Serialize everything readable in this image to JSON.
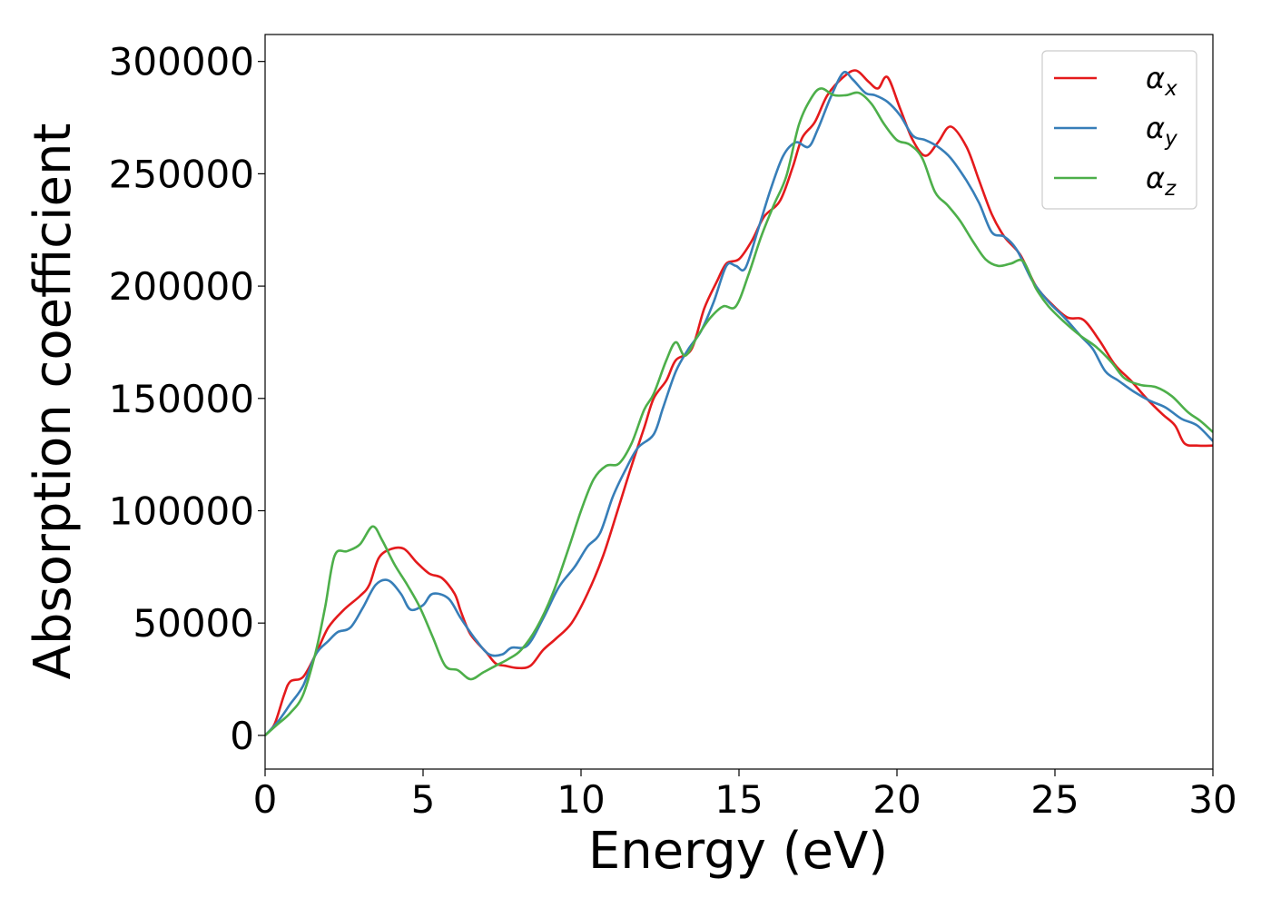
{
  "chart_data": {
    "type": "line",
    "title": "",
    "xlabel": "Energy (eV)",
    "ylabel": "Absorption coefficient",
    "xlim": [
      0,
      30
    ],
    "ylim": [
      -15000,
      312000
    ],
    "grid": false,
    "legend_position": "top-right",
    "x_ticks": [
      0,
      5,
      10,
      15,
      20,
      25,
      30
    ],
    "y_ticks": [
      0,
      50000,
      100000,
      150000,
      200000,
      250000,
      300000
    ],
    "series": [
      {
        "name": "αx",
        "symbol": "α",
        "subscript": "x",
        "color": "#e41a1c",
        "points": [
          [
            0,
            0
          ],
          [
            0.3,
            5000
          ],
          [
            0.6,
            18000
          ],
          [
            0.8,
            24000
          ],
          [
            1.2,
            26000
          ],
          [
            1.6,
            36000
          ],
          [
            2,
            48000
          ],
          [
            2.5,
            56000
          ],
          [
            3,
            62000
          ],
          [
            3.3,
            67000
          ],
          [
            3.6,
            79000
          ],
          [
            4,
            83000
          ],
          [
            4.4,
            83000
          ],
          [
            4.8,
            77000
          ],
          [
            5.2,
            72000
          ],
          [
            5.6,
            70000
          ],
          [
            6,
            63000
          ],
          [
            6.2,
            55000
          ],
          [
            6.5,
            45000
          ],
          [
            7,
            37000
          ],
          [
            7.3,
            32000
          ],
          [
            7.6,
            31000
          ],
          [
            8,
            30000
          ],
          [
            8.4,
            31000
          ],
          [
            8.8,
            38000
          ],
          [
            9.2,
            43000
          ],
          [
            9.7,
            50000
          ],
          [
            10.2,
            63000
          ],
          [
            10.7,
            80000
          ],
          [
            11.2,
            102000
          ],
          [
            11.6,
            120000
          ],
          [
            12,
            137000
          ],
          [
            12.3,
            150000
          ],
          [
            12.7,
            158000
          ],
          [
            13,
            167000
          ],
          [
            13.5,
            172000
          ],
          [
            13.9,
            190000
          ],
          [
            14.3,
            202000
          ],
          [
            14.6,
            210000
          ],
          [
            15,
            212000
          ],
          [
            15.4,
            220000
          ],
          [
            15.8,
            231000
          ],
          [
            16.3,
            238000
          ],
          [
            16.7,
            253000
          ],
          [
            17,
            266000
          ],
          [
            17.4,
            273000
          ],
          [
            17.8,
            285000
          ],
          [
            18.3,
            293000
          ],
          [
            18.7,
            296000
          ],
          [
            19.1,
            291000
          ],
          [
            19.4,
            288000
          ],
          [
            19.7,
            293000
          ],
          [
            20.1,
            279000
          ],
          [
            20.5,
            265000
          ],
          [
            20.9,
            258000
          ],
          [
            21.3,
            264000
          ],
          [
            21.7,
            271000
          ],
          [
            22.2,
            262000
          ],
          [
            22.6,
            247000
          ],
          [
            23,
            232000
          ],
          [
            23.4,
            222000
          ],
          [
            23.9,
            214000
          ],
          [
            24.4,
            200000
          ],
          [
            24.9,
            192000
          ],
          [
            25.4,
            186000
          ],
          [
            25.9,
            185000
          ],
          [
            26.4,
            176000
          ],
          [
            26.9,
            165000
          ],
          [
            27.4,
            158000
          ],
          [
            27.9,
            150000
          ],
          [
            28.4,
            143000
          ],
          [
            28.8,
            138000
          ],
          [
            29.1,
            130000
          ],
          [
            29.5,
            129000
          ],
          [
            30,
            129000
          ]
        ]
      },
      {
        "name": "αy",
        "symbol": "α",
        "subscript": "y",
        "color": "#377eb8",
        "points": [
          [
            0,
            0
          ],
          [
            0.4,
            6000
          ],
          [
            0.8,
            14000
          ],
          [
            1.2,
            22000
          ],
          [
            1.6,
            36000
          ],
          [
            2,
            42000
          ],
          [
            2.3,
            46000
          ],
          [
            2.7,
            48000
          ],
          [
            3.1,
            57000
          ],
          [
            3.5,
            67000
          ],
          [
            3.9,
            69000
          ],
          [
            4.3,
            63000
          ],
          [
            4.6,
            56000
          ],
          [
            5,
            58000
          ],
          [
            5.3,
            63000
          ],
          [
            5.8,
            61000
          ],
          [
            6.2,
            52000
          ],
          [
            6.7,
            42000
          ],
          [
            7.1,
            36000
          ],
          [
            7.5,
            36000
          ],
          [
            7.8,
            39000
          ],
          [
            8.3,
            40000
          ],
          [
            8.8,
            52000
          ],
          [
            9.3,
            66000
          ],
          [
            9.8,
            75000
          ],
          [
            10.2,
            84000
          ],
          [
            10.6,
            90000
          ],
          [
            11,
            106000
          ],
          [
            11.4,
            118000
          ],
          [
            11.8,
            128000
          ],
          [
            12.3,
            134000
          ],
          [
            12.6,
            146000
          ],
          [
            13,
            162000
          ],
          [
            13.4,
            172000
          ],
          [
            13.8,
            180000
          ],
          [
            14.2,
            193000
          ],
          [
            14.6,
            209000
          ],
          [
            14.9,
            209000
          ],
          [
            15.2,
            208000
          ],
          [
            15.6,
            225000
          ],
          [
            16,
            243000
          ],
          [
            16.4,
            258000
          ],
          [
            16.8,
            264000
          ],
          [
            17.2,
            262000
          ],
          [
            17.5,
            270000
          ],
          [
            17.9,
            284000
          ],
          [
            18.3,
            295000
          ],
          [
            18.6,
            292000
          ],
          [
            19,
            286000
          ],
          [
            19.3,
            285000
          ],
          [
            19.7,
            282000
          ],
          [
            20.1,
            276000
          ],
          [
            20.5,
            267000
          ],
          [
            20.9,
            265000
          ],
          [
            21.3,
            262000
          ],
          [
            21.7,
            257000
          ],
          [
            22.2,
            247000
          ],
          [
            22.6,
            237000
          ],
          [
            23,
            224000
          ],
          [
            23.4,
            222000
          ],
          [
            23.8,
            216000
          ],
          [
            24.3,
            202000
          ],
          [
            24.8,
            193000
          ],
          [
            25.3,
            186000
          ],
          [
            25.8,
            178000
          ],
          [
            26.2,
            172000
          ],
          [
            26.6,
            162000
          ],
          [
            27,
            158000
          ],
          [
            27.5,
            153000
          ],
          [
            28,
            149000
          ],
          [
            28.5,
            146000
          ],
          [
            29,
            141000
          ],
          [
            29.5,
            138000
          ],
          [
            30,
            131000
          ]
        ]
      },
      {
        "name": "αz",
        "symbol": "α",
        "subscript": "z",
        "color": "#4daf4a",
        "points": [
          [
            0,
            0
          ],
          [
            0.4,
            5000
          ],
          [
            0.8,
            10000
          ],
          [
            1.2,
            18000
          ],
          [
            1.6,
            37000
          ],
          [
            1.9,
            57000
          ],
          [
            2.2,
            80000
          ],
          [
            2.6,
            82000
          ],
          [
            3,
            85000
          ],
          [
            3.4,
            93000
          ],
          [
            3.7,
            87000
          ],
          [
            4.1,
            76000
          ],
          [
            4.5,
            67000
          ],
          [
            4.9,
            57000
          ],
          [
            5.3,
            44000
          ],
          [
            5.7,
            31000
          ],
          [
            6.1,
            29000
          ],
          [
            6.5,
            25000
          ],
          [
            6.9,
            28000
          ],
          [
            7.3,
            31000
          ],
          [
            7.7,
            34000
          ],
          [
            8.1,
            38000
          ],
          [
            8.6,
            48000
          ],
          [
            9.1,
            63000
          ],
          [
            9.6,
            83000
          ],
          [
            10,
            100000
          ],
          [
            10.4,
            114000
          ],
          [
            10.8,
            120000
          ],
          [
            11.2,
            121000
          ],
          [
            11.6,
            130000
          ],
          [
            12,
            145000
          ],
          [
            12.3,
            152000
          ],
          [
            12.7,
            167000
          ],
          [
            13,
            175000
          ],
          [
            13.3,
            169000
          ],
          [
            13.7,
            178000
          ],
          [
            14.1,
            186000
          ],
          [
            14.5,
            191000
          ],
          [
            14.9,
            191000
          ],
          [
            15.3,
            205000
          ],
          [
            15.7,
            222000
          ],
          [
            16.1,
            236000
          ],
          [
            16.5,
            249000
          ],
          [
            16.9,
            272000
          ],
          [
            17.3,
            284000
          ],
          [
            17.6,
            288000
          ],
          [
            18,
            285000
          ],
          [
            18.4,
            285000
          ],
          [
            18.8,
            286000
          ],
          [
            19.2,
            281000
          ],
          [
            19.6,
            272000
          ],
          [
            20,
            265000
          ],
          [
            20.4,
            263000
          ],
          [
            20.8,
            257000
          ],
          [
            21.2,
            242000
          ],
          [
            21.6,
            236000
          ],
          [
            22,
            229000
          ],
          [
            22.4,
            220000
          ],
          [
            22.8,
            212000
          ],
          [
            23.2,
            209000
          ],
          [
            23.6,
            210000
          ],
          [
            24,
            211000
          ],
          [
            24.4,
            199000
          ],
          [
            24.8,
            191000
          ],
          [
            25.3,
            184000
          ],
          [
            25.8,
            178000
          ],
          [
            26.3,
            173000
          ],
          [
            26.8,
            166000
          ],
          [
            27.2,
            159000
          ],
          [
            27.7,
            156000
          ],
          [
            28.2,
            155000
          ],
          [
            28.7,
            151000
          ],
          [
            29.2,
            144000
          ],
          [
            29.6,
            140000
          ],
          [
            30,
            135000
          ]
        ]
      }
    ]
  }
}
